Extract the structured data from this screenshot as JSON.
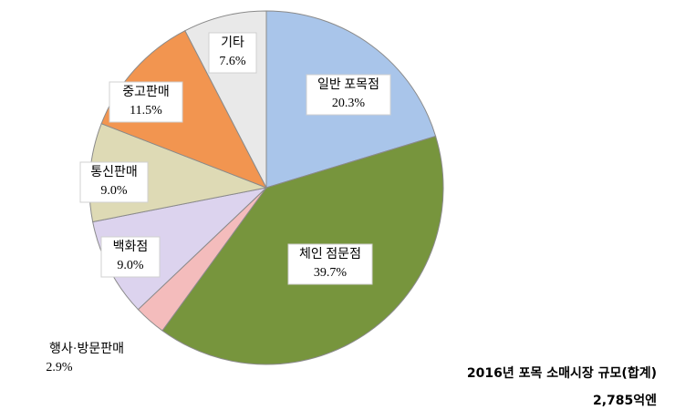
{
  "chart_data": {
    "type": "pie",
    "title": "2016년 포목 소매시장 규모(합계)",
    "subtitle": "2,785억엔",
    "categories": [
      "일반 포목점",
      "체인 점문점",
      "행사·방문판매",
      "백화점",
      "통신판매",
      "중고판매",
      "기타"
    ],
    "values": [
      20.3,
      39.7,
      2.9,
      9.0,
      9.0,
      11.5,
      7.6
    ],
    "value_labels": [
      "20.3%",
      "39.7%",
      "2.9%",
      "9.0%",
      "9.0%",
      "11.5%",
      "7.6%"
    ],
    "colors": [
      "#a9c5ea",
      "#77953d",
      "#f4bcbc",
      "#dcd3ee",
      "#dedab5",
      "#f29550",
      "#e9e9e9"
    ]
  }
}
